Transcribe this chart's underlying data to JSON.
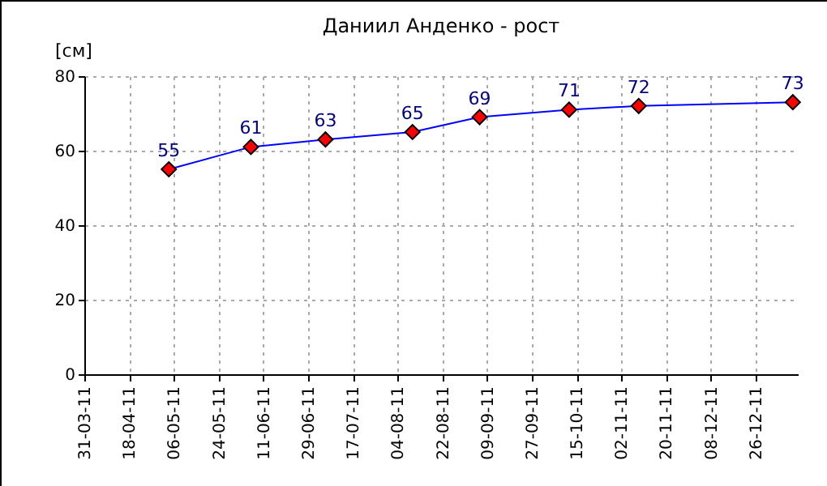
{
  "chart_data": {
    "type": "line",
    "title": "Даниил Анденко - рост",
    "ylabel": "[см]",
    "x": [
      "2011-05-04",
      "2011-06-06",
      "2011-07-06",
      "2011-08-10",
      "2011-09-06",
      "2011-10-12",
      "2011-11-09",
      "2012-01-10"
    ],
    "series": [
      {
        "color": "#0000ff",
        "values": [
          55,
          61,
          63,
          65,
          69,
          71,
          72,
          73
        ]
      }
    ],
    "xlim": [
      "2011-03-31",
      "2012-01-12"
    ],
    "xticks": [
      {
        "value": "2011-03-31",
        "label": "31-03-11"
      },
      {
        "value": "2011-04-18",
        "label": "18-04-11"
      },
      {
        "value": "2011-05-06",
        "label": "06-05-11"
      },
      {
        "value": "2011-05-24",
        "label": "24-05-11"
      },
      {
        "value": "2011-06-11",
        "label": "11-06-11"
      },
      {
        "value": "2011-06-29",
        "label": "29-06-11"
      },
      {
        "value": "2011-07-17",
        "label": "17-07-11"
      },
      {
        "value": "2011-08-04",
        "label": "04-08-11"
      },
      {
        "value": "2011-08-22",
        "label": "22-08-11"
      },
      {
        "value": "2011-09-09",
        "label": "09-09-11"
      },
      {
        "value": "2011-09-27",
        "label": "27-09-11"
      },
      {
        "value": "2011-10-15",
        "label": "15-10-11"
      },
      {
        "value": "2011-11-02",
        "label": "02-11-11"
      },
      {
        "value": "2011-11-20",
        "label": "20-11-11"
      },
      {
        "value": "2011-12-08",
        "label": "08-12-11"
      },
      {
        "value": "2011-12-26",
        "label": "26-12-11"
      }
    ],
    "ylim": [
      0,
      80
    ],
    "yticks": [
      0,
      20,
      40,
      60,
      80
    ],
    "grid": true,
    "marker": "diamond",
    "data_labels": true,
    "line_style": "solid"
  }
}
